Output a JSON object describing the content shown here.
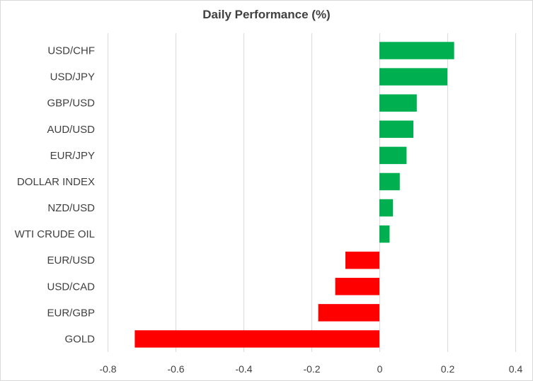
{
  "chart_data": {
    "type": "bar",
    "orientation": "horizontal",
    "title": "Daily Performance  (%)",
    "categories": [
      "USD/CHF",
      "USD/JPY",
      "GBP/USD",
      "AUD/USD",
      "EUR/JPY",
      "DOLLAR INDEX",
      "NZD/USD",
      "WTI CRUDE OIL",
      "EUR/USD",
      "USD/CAD",
      "EUR/GBP",
      "GOLD"
    ],
    "values": [
      0.22,
      0.2,
      0.11,
      0.1,
      0.08,
      0.06,
      0.04,
      0.03,
      -0.1,
      -0.13,
      -0.18,
      -0.72
    ],
    "xlim": [
      -0.8,
      0.4
    ],
    "xticks": [
      -0.8,
      -0.6,
      -0.4,
      -0.2,
      0,
      0.2,
      0.4
    ],
    "xtick_labels": [
      "-0.8",
      "-0.6",
      "-0.4",
      "-0.2",
      "0",
      "0.2",
      "0.4"
    ],
    "grid": "vertical",
    "colors": {
      "positive": "#00b050",
      "negative": "#ff0000",
      "grid": "#d9d9d9",
      "text": "#404040"
    }
  }
}
